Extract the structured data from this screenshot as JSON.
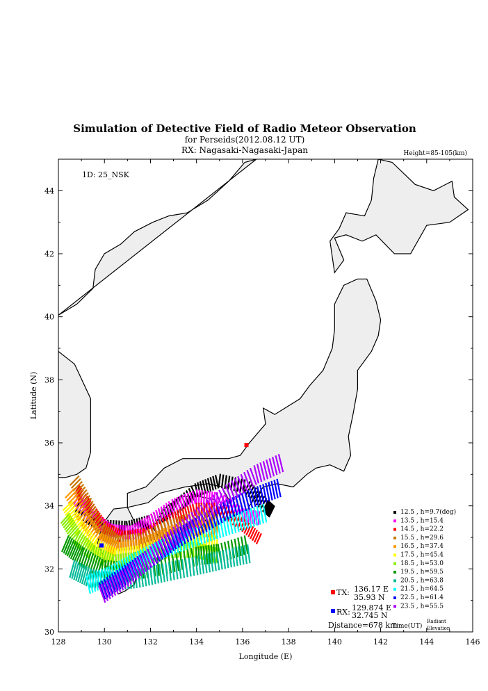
{
  "chart_data": {
    "type": "scatter",
    "title": "Simulation of Detective Field of Radio Meteor Observation",
    "subtitle": "for Perseids(2012.08.12 UT)",
    "rx_line": "RX: Nagasaki-Nagasaki-Japan",
    "height_note": "Height=85-105(km)",
    "id_label": "1D: 25_NSK",
    "xlabel": "Longitude (E)",
    "ylabel": "Latitude (N)",
    "xlim": [
      128,
      146
    ],
    "ylim": [
      30,
      45
    ],
    "xticks": [
      "128",
      "130",
      "132",
      "134",
      "136",
      "138",
      "140",
      "142",
      "144",
      "146"
    ],
    "yticks": [
      "30",
      "32",
      "34",
      "36",
      "38",
      "40",
      "42",
      "44"
    ],
    "tx": {
      "label": "TX:",
      "lon_text": "136.17 E",
      "lat_text": "35.93 N",
      "lon": 136.17,
      "lat": 35.93,
      "color": "#ff0000"
    },
    "rx": {
      "label": "RX:",
      "lon_text": "129.874 E",
      "lat_text": "32.745 N",
      "lon": 129.874,
      "lat": 32.745,
      "color": "#0000ff"
    },
    "distance": "Distance=678 km",
    "legend_footer": {
      "time": "Time(UT)",
      "radiant": "Radiant",
      "elevation": "Elevation"
    },
    "series": [
      {
        "name": "12.5 ,  h=9.7(deg)",
        "color": "#000000",
        "path": [
          [
            128.8,
            33.9
          ],
          [
            129.9,
            33.35
          ],
          [
            131,
            33.3
          ],
          [
            132,
            33.5
          ],
          [
            133,
            33.9
          ],
          [
            134,
            34.5
          ],
          [
            135,
            34.8
          ],
          [
            136.2,
            34.6
          ],
          [
            137,
            34.0
          ],
          [
            137.3,
            33.8
          ]
        ],
        "width": 0.22
      },
      {
        "name": "13.5 ,  h=15.4",
        "color": "#ff00ff",
        "path": [
          [
            128.8,
            34.2
          ],
          [
            129.5,
            33.6
          ],
          [
            130.3,
            33.2
          ],
          [
            131.2,
            33.15
          ],
          [
            132,
            33.5
          ],
          [
            133,
            34.0
          ],
          [
            134,
            34.3
          ],
          [
            135,
            34.2
          ],
          [
            136,
            33.7
          ],
          [
            136.8,
            33.6
          ]
        ],
        "width": 0.22
      },
      {
        "name": "14.5 ,  h=22.2",
        "color": "#ff0000",
        "path": [
          [
            128.8,
            34.5
          ],
          [
            129.4,
            33.9
          ],
          [
            130,
            33.3
          ],
          [
            130.8,
            33.0
          ],
          [
            131.8,
            33.1
          ],
          [
            133,
            33.6
          ],
          [
            134,
            33.9
          ],
          [
            135,
            33.9
          ],
          [
            136,
            33.4
          ],
          [
            136.8,
            32.9
          ]
        ],
        "width": 0.2
      },
      {
        "name": "15.5 ,  h=29.6",
        "color": "#c87800",
        "path": [
          [
            128.7,
            34.8
          ],
          [
            129.3,
            34.0
          ],
          [
            129.9,
            33.2
          ],
          [
            130.6,
            32.8
          ],
          [
            131.6,
            32.9
          ],
          [
            132.8,
            33.3
          ],
          [
            134,
            33.6
          ],
          [
            135,
            33.5
          ]
        ],
        "width": 0.25
      },
      {
        "name": "16.5 ,  h=37.4",
        "color": "#ff9900",
        "path": [
          [
            128.5,
            34.4
          ],
          [
            129.1,
            33.6
          ],
          [
            129.8,
            32.9
          ],
          [
            130.6,
            32.6
          ],
          [
            131.6,
            32.7
          ],
          [
            132.8,
            33.1
          ],
          [
            134,
            33.3
          ],
          [
            135,
            33.2
          ]
        ],
        "width": 0.25
      },
      {
        "name": "17.5 ,  h=45.4",
        "color": "#ffff00",
        "path": [
          [
            128.4,
            34.0
          ],
          [
            128.9,
            33.3
          ],
          [
            129.6,
            32.7
          ],
          [
            130.5,
            32.4
          ],
          [
            131.5,
            32.5
          ],
          [
            132.8,
            32.8
          ],
          [
            134,
            32.9
          ],
          [
            135,
            32.8
          ]
        ],
        "width": 0.25
      },
      {
        "name": "18.5 ,  h=53.0",
        "color": "#88ee00",
        "path": [
          [
            128.3,
            33.6
          ],
          [
            128.8,
            33.0
          ],
          [
            129.5,
            32.5
          ],
          [
            130.4,
            32.2
          ],
          [
            131.4,
            32.3
          ],
          [
            132.8,
            32.6
          ],
          [
            134,
            32.6
          ],
          [
            135,
            32.4
          ]
        ],
        "width": 0.25
      },
      {
        "name": "19.5 ,  h=59.5",
        "color": "#009900",
        "path": [
          [
            128.3,
            32.8
          ],
          [
            129,
            32.4
          ],
          [
            129.9,
            32.0
          ],
          [
            131,
            31.9
          ],
          [
            132.5,
            32.1
          ],
          [
            134,
            32.4
          ],
          [
            135,
            32.5
          ],
          [
            136.3,
            32.8
          ]
        ],
        "width": 0.3
      },
      {
        "name": "20.5 ,  h=63.8",
        "color": "#00bb99",
        "path": [
          [
            128.6,
            32.0
          ],
          [
            129.4,
            31.7
          ],
          [
            130.4,
            31.6
          ],
          [
            131.5,
            31.7
          ],
          [
            132.7,
            31.9
          ],
          [
            134,
            32.1
          ],
          [
            135.2,
            32.3
          ],
          [
            136.4,
            32.5
          ]
        ],
        "width": 0.3
      },
      {
        "name": "21.5 ,  h=64.5",
        "color": "#00ffff",
        "path": [
          [
            129.3,
            31.5
          ],
          [
            130.3,
            31.8
          ],
          [
            131.3,
            32.2
          ],
          [
            132.4,
            32.6
          ],
          [
            133.5,
            32.9
          ],
          [
            134.7,
            33.2
          ],
          [
            135.9,
            33.5
          ],
          [
            137.1,
            33.8
          ]
        ],
        "width": 0.3
      },
      {
        "name": "22.5 ,  h=61.4",
        "color": "#0000ff",
        "path": [
          [
            129.9,
            31.3
          ],
          [
            130.9,
            31.8
          ],
          [
            131.9,
            32.3
          ],
          [
            133,
            32.9
          ],
          [
            134.2,
            33.4
          ],
          [
            135.4,
            33.9
          ],
          [
            136.6,
            34.3
          ],
          [
            137.7,
            34.6
          ]
        ],
        "width": 0.3
      },
      {
        "name": "23.5 ,  h=55.5",
        "color": "#aa00ff",
        "path": [
          [
            129.9,
            31.2
          ],
          [
            130.9,
            31.7
          ],
          [
            131.9,
            32.3
          ],
          [
            133,
            33.0
          ],
          [
            134.2,
            33.7
          ],
          [
            135.4,
            34.4
          ],
          [
            136.6,
            35.0
          ],
          [
            137.8,
            35.4
          ]
        ],
        "width": 0.3
      }
    ],
    "coast": [
      [
        [
          128.0,
          40.05
        ],
        [
          128.8,
          40.4
        ],
        [
          129.5,
          40.9
        ],
        [
          129.6,
          41.5
        ],
        [
          130.0,
          42.0
        ],
        [
          130.7,
          42.3
        ],
        [
          131.3,
          42.7
        ],
        [
          132.1,
          43.0
        ],
        [
          132.8,
          43.2
        ],
        [
          133.6,
          43.3
        ],
        [
          134.5,
          43.7
        ],
        [
          135.4,
          44.3
        ],
        [
          136.1,
          44.9
        ],
        [
          136.6,
          45.0
        ]
      ],
      [
        [
          128.0,
          38.9
        ],
        [
          128.7,
          38.5
        ],
        [
          129.4,
          37.4
        ],
        [
          129.4,
          36.5
        ],
        [
          129.4,
          35.7
        ],
        [
          129.2,
          35.2
        ],
        [
          128.8,
          35.0
        ],
        [
          128.3,
          34.9
        ],
        [
          128.0,
          34.9
        ]
      ],
      [
        [
          131.5,
          32.9
        ],
        [
          131.3,
          33.5
        ],
        [
          131.0,
          33.95
        ],
        [
          130.4,
          33.9
        ],
        [
          129.9,
          33.4
        ],
        [
          129.7,
          32.8
        ],
        [
          129.9,
          32.5
        ],
        [
          130.2,
          31.8
        ],
        [
          130.6,
          31.2
        ],
        [
          130.9,
          31.3
        ],
        [
          131.3,
          31.5
        ],
        [
          131.5,
          32.2
        ],
        [
          131.7,
          32.6
        ],
        [
          131.5,
          32.9
        ]
      ],
      [
        [
          132.1,
          33.3
        ],
        [
          132.6,
          33.9
        ],
        [
          133.3,
          34.3
        ],
        [
          134.1,
          34.3
        ],
        [
          134.8,
          34.2
        ],
        [
          134.6,
          33.8
        ],
        [
          134.2,
          33.3
        ],
        [
          133.5,
          33.4
        ],
        [
          133.0,
          32.8
        ],
        [
          132.5,
          32.9
        ],
        [
          132.1,
          33.3
        ]
      ],
      [
        [
          131.0,
          33.95
        ],
        [
          131.9,
          34.1
        ],
        [
          132.4,
          34.4
        ],
        [
          133.5,
          34.6
        ],
        [
          134.5,
          34.7
        ],
        [
          135.1,
          34.6
        ],
        [
          135.4,
          34.2
        ],
        [
          135.7,
          33.6
        ],
        [
          136.0,
          33.5
        ],
        [
          136.3,
          34.0
        ],
        [
          136.9,
          34.6
        ],
        [
          137.5,
          34.7
        ],
        [
          138.2,
          34.6
        ],
        [
          138.8,
          35.0
        ],
        [
          139.2,
          35.2
        ],
        [
          139.8,
          35.3
        ],
        [
          140.4,
          35.1
        ],
        [
          140.7,
          35.6
        ],
        [
          140.6,
          36.2
        ],
        [
          140.8,
          36.9
        ],
        [
          141.0,
          37.7
        ],
        [
          141.0,
          38.3
        ],
        [
          141.6,
          38.9
        ],
        [
          141.9,
          39.4
        ],
        [
          142.0,
          39.9
        ],
        [
          141.8,
          40.5
        ],
        [
          141.4,
          41.2
        ],
        [
          141.0,
          41.2
        ],
        [
          140.4,
          41.0
        ],
        [
          140.0,
          40.4
        ],
        [
          140.0,
          39.6
        ],
        [
          139.9,
          39.0
        ],
        [
          139.5,
          38.3
        ],
        [
          138.9,
          37.8
        ],
        [
          138.5,
          37.4
        ],
        [
          137.4,
          36.9
        ],
        [
          136.9,
          37.1
        ],
        [
          137.0,
          36.6
        ],
        [
          136.3,
          36.0
        ],
        [
          135.9,
          35.6
        ],
        [
          135.4,
          35.5
        ],
        [
          134.3,
          35.5
        ],
        [
          133.4,
          35.5
        ],
        [
          132.6,
          35.2
        ],
        [
          131.8,
          34.6
        ],
        [
          131.0,
          34.4
        ],
        [
          131.0,
          33.95
        ]
      ],
      [
        [
          140.0,
          41.4
        ],
        [
          140.4,
          41.8
        ],
        [
          140.0,
          42.5
        ],
        [
          140.5,
          42.6
        ],
        [
          141.2,
          42.4
        ],
        [
          141.8,
          42.6
        ],
        [
          142.6,
          42.0
        ],
        [
          143.3,
          42.0
        ],
        [
          144.0,
          42.9
        ],
        [
          145.0,
          43.0
        ],
        [
          145.8,
          43.4
        ],
        [
          145.2,
          43.8
        ],
        [
          145.1,
          44.3
        ],
        [
          144.3,
          44.0
        ],
        [
          143.5,
          44.2
        ],
        [
          142.5,
          44.9
        ],
        [
          141.9,
          45.0
        ],
        [
          141.7,
          44.4
        ],
        [
          141.6,
          43.7
        ],
        [
          141.3,
          43.2
        ],
        [
          140.5,
          43.3
        ],
        [
          140.2,
          42.8
        ],
        [
          139.8,
          42.4
        ],
        [
          140.0,
          41.4
        ]
      ]
    ]
  }
}
